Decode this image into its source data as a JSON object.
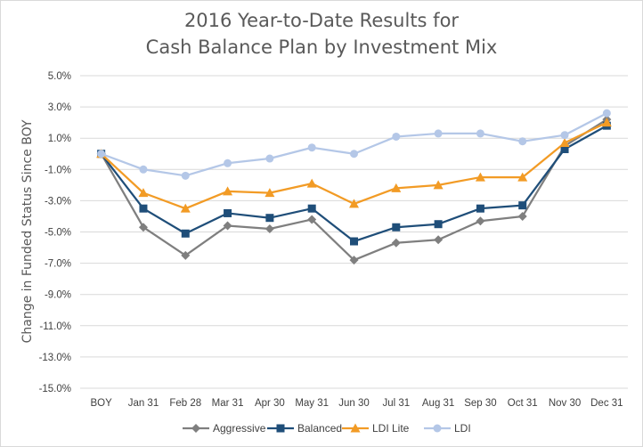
{
  "chart_data": {
    "type": "line",
    "title_line1": "2016 Year-to-Date Results for",
    "title_line2": "Cash Balance Plan by Investment Mix",
    "ylabel": "Change in Funded Status Since BOY",
    "xlabel": "",
    "ylim": [
      -15.0,
      5.0
    ],
    "y_ticks": [
      "5.0%",
      "3.0%",
      "1.0%",
      "-1.0%",
      "-3.0%",
      "-5.0%",
      "-7.0%",
      "-9.0%",
      "-11.0%",
      "-13.0%",
      "-15.0%"
    ],
    "y_tick_values": [
      5,
      3,
      1,
      -1,
      -3,
      -5,
      -7,
      -9,
      -11,
      -13,
      -15
    ],
    "categories": [
      "BOY",
      "Jan 31",
      "Feb 28",
      "Mar 31",
      "Apr 30",
      "May 31",
      "Jun 30",
      "Jul 31",
      "Aug 31",
      "Sep 30",
      "Oct 31",
      "Nov 30",
      "Dec 31"
    ],
    "grid": true,
    "legend_position": "bottom",
    "series": [
      {
        "name": "Aggressive",
        "color": "#7f7f7f",
        "marker": "diamond",
        "values": [
          0.0,
          -4.7,
          -6.5,
          -4.6,
          -4.8,
          -4.2,
          -6.8,
          -5.7,
          -5.5,
          -4.3,
          -4.0,
          0.5,
          2.2
        ]
      },
      {
        "name": "Balanced",
        "color": "#1f4e79",
        "marker": "square",
        "values": [
          0.0,
          -3.5,
          -5.1,
          -3.8,
          -4.1,
          -3.5,
          -5.6,
          -4.7,
          -4.5,
          -3.5,
          -3.3,
          0.3,
          1.8
        ]
      },
      {
        "name": "LDI Lite",
        "color": "#f29b25",
        "marker": "triangle",
        "values": [
          0.0,
          -2.5,
          -3.5,
          -2.4,
          -2.5,
          -1.9,
          -3.2,
          -2.2,
          -2.0,
          -1.5,
          -1.5,
          0.7,
          2.0
        ]
      },
      {
        "name": "LDI",
        "color": "#b4c7e7",
        "marker": "circle",
        "values": [
          0.0,
          -1.0,
          -1.4,
          -0.6,
          -0.3,
          0.4,
          0.0,
          1.1,
          1.3,
          1.3,
          0.8,
          1.2,
          2.6
        ]
      }
    ]
  }
}
